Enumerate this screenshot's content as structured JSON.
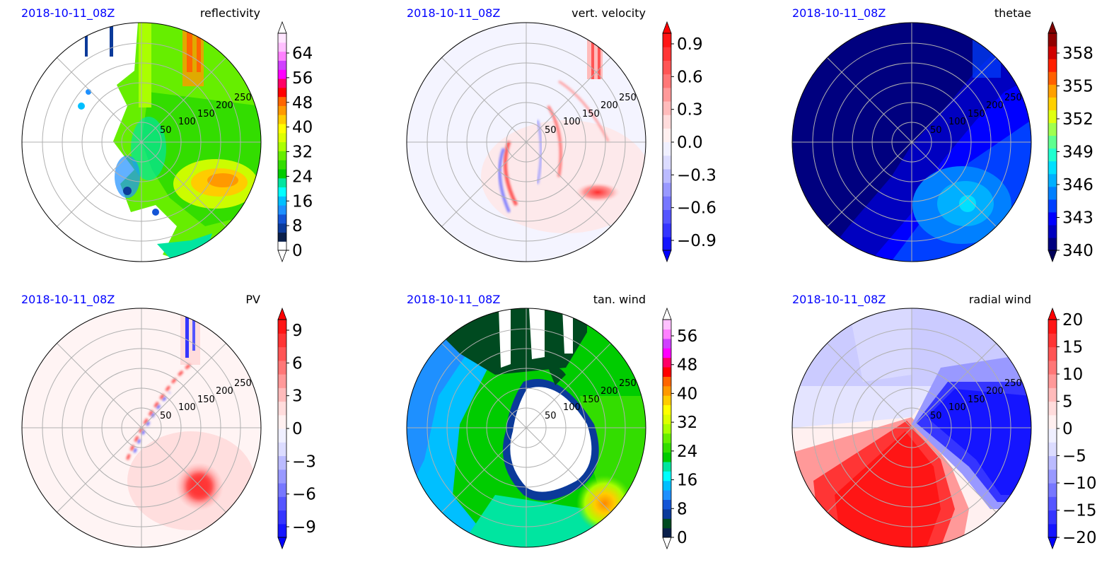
{
  "figure": {
    "panels": [
      {
        "id": "reflectivity",
        "date": "2018-10-11_08Z",
        "title": "reflectivity",
        "colorbar": {
          "ticks": [
            "0",
            "8",
            "16",
            "24",
            "32",
            "40",
            "48",
            "56",
            "64"
          ],
          "colors": [
            "#ffffff",
            "#0a1f4a",
            "#0b3a9a",
            "#1455d6",
            "#1e90ff",
            "#00bfff",
            "#00ffff",
            "#00e5a0",
            "#00cc00",
            "#33dd00",
            "#66ee00",
            "#aaff00",
            "#ddff00",
            "#ffff00",
            "#ffcc00",
            "#ff9900",
            "#ff6600",
            "#ff0000",
            "#ff0066",
            "#ff00ff",
            "#d040ff",
            "#ff80ff",
            "#ffc0ff",
            "#ffe6ff"
          ],
          "ext_low": "#ffffff",
          "ext_high": "#ffffff"
        }
      },
      {
        "id": "vert-velocity",
        "date": "2018-10-11_08Z",
        "title": "vert. velocity",
        "colorbar": {
          "ticks": [
            "−0.9",
            "−0.6",
            "−0.3",
            "0.0",
            "0.3",
            "0.6",
            "0.9"
          ],
          "colors": [
            "#1515ff",
            "#3535ff",
            "#5555ff",
            "#7777ff",
            "#9999ff",
            "#bbbbff",
            "#dcdcff",
            "#f0f0ff",
            "#fff0f0",
            "#ffdcdc",
            "#ffbbbb",
            "#ff9999",
            "#ff7777",
            "#ff5555",
            "#ff3535",
            "#ff1515"
          ],
          "ext_low": "#0000ff",
          "ext_high": "#ff0000"
        }
      },
      {
        "id": "thetae",
        "date": "2018-10-11_08Z",
        "title": "thetae",
        "colorbar": {
          "ticks": [
            "340",
            "343",
            "346",
            "349",
            "352",
            "355",
            "358"
          ],
          "colors": [
            "#00007f",
            "#0000c0",
            "#0000ff",
            "#0040ff",
            "#0080ff",
            "#00b0ff",
            "#00e0ff",
            "#20ffd0",
            "#60ff90",
            "#a0ff50",
            "#e0ff10",
            "#ffd000",
            "#ffa000",
            "#ff6000",
            "#ff2000",
            "#d00000",
            "#900000"
          ],
          "ext_low": "#00005a",
          "ext_high": "#7f0000"
        }
      },
      {
        "id": "pv",
        "date": "2018-10-11_08Z",
        "title": "PV",
        "colorbar": {
          "ticks": [
            "−9",
            "−6",
            "−3",
            "0",
            "3",
            "6",
            "9"
          ],
          "colors": [
            "#1515ff",
            "#3535ff",
            "#5555ff",
            "#7777ff",
            "#9999ff",
            "#bbbbff",
            "#dcdcff",
            "#f0f0ff",
            "#fff0f0",
            "#ffdcdc",
            "#ffbbbb",
            "#ff9999",
            "#ff7777",
            "#ff5555",
            "#ff3535",
            "#ff1515"
          ],
          "ext_low": "#0000ff",
          "ext_high": "#ff0000"
        }
      },
      {
        "id": "tan-wind",
        "date": "2018-10-11_08Z",
        "title": "tan. wind",
        "colorbar": {
          "ticks": [
            "0",
            "8",
            "16",
            "24",
            "32",
            "40",
            "48",
            "56"
          ],
          "colors": [
            "#0a1f4a",
            "#004a20",
            "#0b3a9a",
            "#1455d6",
            "#1e90ff",
            "#00bfff",
            "#00ffff",
            "#00e5a0",
            "#00cc00",
            "#33dd00",
            "#66ee00",
            "#aaff00",
            "#ddff00",
            "#ffff00",
            "#ffcc00",
            "#ff9900",
            "#ff6600",
            "#ff0000",
            "#ff0066",
            "#ff00ff",
            "#d040ff",
            "#ff80ff",
            "#ffc0ff"
          ],
          "ext_low": "#ffffff",
          "ext_high": "#ffffff"
        }
      },
      {
        "id": "radial-wind",
        "date": "2018-10-11_08Z",
        "title": "radial wind",
        "colorbar": {
          "ticks": [
            "−20",
            "−15",
            "−10",
            "−5",
            "0",
            "5",
            "10",
            "15",
            "20"
          ],
          "colors": [
            "#1515ff",
            "#3535ff",
            "#5555ff",
            "#7777ff",
            "#9999ff",
            "#bbbbff",
            "#dcdcff",
            "#f0f0ff",
            "#fff0f0",
            "#ffdcdc",
            "#ffbbbb",
            "#ff9999",
            "#ff7777",
            "#ff5555",
            "#ff3535",
            "#ff1515"
          ],
          "ext_low": "#0000ff",
          "ext_high": "#ff0000"
        }
      }
    ],
    "radial_ticks": [
      "50",
      "100",
      "150",
      "200",
      "250"
    ]
  },
  "chart_data": [
    {
      "type": "heatmap",
      "projection": "polar",
      "title": "reflectivity",
      "date": "2018-10-11_08Z",
      "r_ticks": [
        50,
        100,
        150,
        200,
        250
      ],
      "grid": true,
      "colorbar_range": [
        0,
        70
      ],
      "colorbar_ticks": [
        0,
        8,
        16,
        24,
        32,
        40,
        48,
        56,
        64
      ],
      "extend": "both"
    },
    {
      "type": "heatmap",
      "projection": "polar",
      "title": "vert. velocity",
      "date": "2018-10-11_08Z",
      "r_ticks": [
        50,
        100,
        150,
        200,
        250
      ],
      "grid": true,
      "colorbar_range": [
        -1.0,
        1.0
      ],
      "colorbar_ticks": [
        -0.9,
        -0.6,
        -0.3,
        0.0,
        0.3,
        0.6,
        0.9
      ],
      "extend": "both"
    },
    {
      "type": "heatmap",
      "projection": "polar",
      "title": "thetae",
      "date": "2018-10-11_08Z",
      "r_ticks": [
        50,
        100,
        150,
        200,
        250
      ],
      "grid": true,
      "colorbar_range": [
        340,
        360
      ],
      "colorbar_ticks": [
        340,
        343,
        346,
        349,
        352,
        355,
        358
      ],
      "extend": "both"
    },
    {
      "type": "heatmap",
      "projection": "polar",
      "title": "PV",
      "date": "2018-10-11_08Z",
      "r_ticks": [
        50,
        100,
        150,
        200,
        250
      ],
      "grid": true,
      "colorbar_range": [
        -10,
        10
      ],
      "colorbar_ticks": [
        -9,
        -6,
        -3,
        0,
        3,
        6,
        9
      ],
      "extend": "both"
    },
    {
      "type": "heatmap",
      "projection": "polar",
      "title": "tan. wind",
      "date": "2018-10-11_08Z",
      "r_ticks": [
        50,
        100,
        150,
        200,
        250
      ],
      "grid": true,
      "colorbar_range": [
        0,
        60
      ],
      "colorbar_ticks": [
        0,
        8,
        16,
        24,
        32,
        40,
        48,
        56
      ],
      "extend": "both"
    },
    {
      "type": "heatmap",
      "projection": "polar",
      "title": "radial wind",
      "date": "2018-10-11_08Z",
      "r_ticks": [
        50,
        100,
        150,
        200,
        250
      ],
      "grid": true,
      "colorbar_range": [
        -20,
        20
      ],
      "colorbar_ticks": [
        -20,
        -15,
        -10,
        -5,
        0,
        5,
        10,
        15,
        20
      ],
      "extend": "both"
    }
  ]
}
